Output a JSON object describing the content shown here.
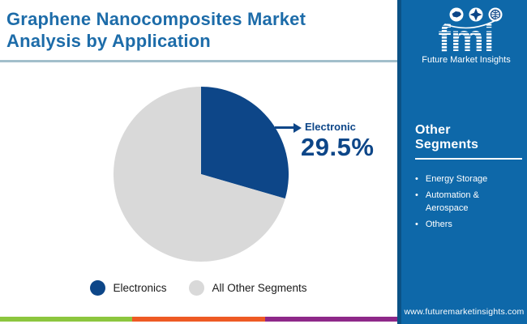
{
  "page": {
    "title": "Graphene Nanocomposites Market Analysis by Application"
  },
  "chart_data": {
    "type": "pie",
    "title": "Graphene Nanocomposites Market Analysis by Application",
    "slices": [
      {
        "label": "Electronics",
        "value": 29.5,
        "color": "#0d4688"
      },
      {
        "label": "All Other Segments",
        "value": 70.5,
        "color": "#d9d9d9"
      }
    ],
    "start_angle_deg": 0,
    "direction": "clockwise",
    "callout": {
      "label": "Electronic",
      "value_text": "29.5%"
    },
    "legend_position": "bottom"
  },
  "legend": {
    "items": [
      {
        "label": "Electronics",
        "color": "#0d4688"
      },
      {
        "label": "All Other Segments",
        "color": "#d9d9d9"
      }
    ]
  },
  "sidebar": {
    "logo": {
      "brand": "fmi",
      "tagline": "Future Market Insights",
      "icons": [
        "map-icon",
        "compass-icon",
        "globe-icon"
      ]
    },
    "other_segments": {
      "heading": "Other Segments",
      "items": [
        "Energy Storage",
        "Automation & Aerospace",
        "Others"
      ]
    },
    "website": "www.futuremarketinsights.com"
  },
  "footer": {
    "stripe_colors": [
      "#8cc63e",
      "#ee5a24",
      "#8e2889"
    ]
  },
  "theme": {
    "title_blue": "#1d6ca9",
    "navy": "#0d4688",
    "pie_gray": "#d9d9d9",
    "sidebar_blue": "#0e68a9",
    "sidebar_edge": "#0b5286",
    "separator": "#a2bfcb"
  }
}
